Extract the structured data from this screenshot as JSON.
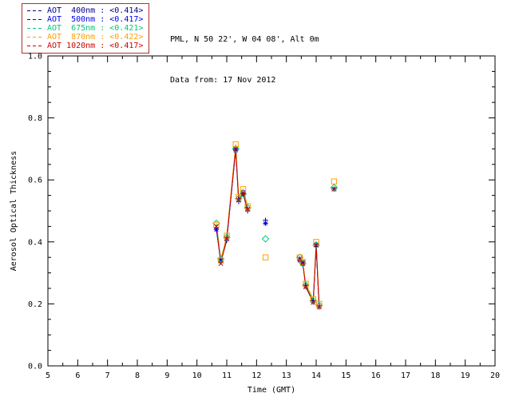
{
  "header": {
    "station_line": "PML, N 50 22', W 04 08', Alt 0m",
    "date_line": "Data from: 17 Nov 2012"
  },
  "chart_data": {
    "type": "line",
    "title": "",
    "xlabel": "Time (GMT)",
    "ylabel": "Aerosol Optical Thickness",
    "xlim": [
      5,
      20
    ],
    "ylim": [
      0.0,
      1.0
    ],
    "xticks": [
      5,
      6,
      7,
      8,
      9,
      10,
      11,
      12,
      13,
      14,
      15,
      16,
      17,
      18,
      19,
      20
    ],
    "yticks": [
      0.0,
      0.2,
      0.4,
      0.6,
      0.8,
      1.0
    ],
    "x_minor_step": 0.5,
    "y_minor_step": 0.05,
    "gap_threshold": 0.45,
    "grid": false,
    "legend_position": "top-left",
    "x": [
      10.65,
      10.8,
      11.0,
      11.3,
      11.4,
      11.55,
      11.7,
      12.3,
      13.45,
      13.55,
      13.65,
      13.9,
      14.0,
      14.1,
      14.6
    ],
    "series": [
      {
        "name": "AOT 400nm",
        "mean": "<0.414>",
        "label": "AOT  400nm : <0.414>",
        "color": "#00008B",
        "marker": "plus",
        "values": [
          0.445,
          0.335,
          0.405,
          0.7,
          0.53,
          0.555,
          0.5,
          0.47,
          0.345,
          0.33,
          0.26,
          0.21,
          0.385,
          0.19,
          0.57
        ]
      },
      {
        "name": "AOT 500nm",
        "mean": "<0.417>",
        "label": "AOT  500nm : <0.417>",
        "color": "#0000EE",
        "marker": "asterisk",
        "values": [
          0.44,
          0.34,
          0.41,
          0.695,
          0.535,
          0.56,
          0.505,
          0.46,
          0.34,
          0.335,
          0.255,
          0.205,
          0.39,
          0.19,
          0.57
        ]
      },
      {
        "name": "AOT 675nm",
        "mean": "<0.421>",
        "label": "AOT  675nm : <0.421>",
        "color": "#00C878",
        "marker": "diamond",
        "values": [
          0.46,
          0.345,
          0.415,
          0.7,
          0.54,
          0.555,
          0.51,
          0.41,
          0.35,
          0.33,
          0.26,
          0.21,
          0.39,
          0.195,
          0.575
        ]
      },
      {
        "name": "AOT 870nm",
        "mean": "<0.422>",
        "label": "AOT  870nm : <0.422>",
        "color": "#FFA000",
        "marker": "square",
        "values": [
          0.455,
          0.34,
          0.42,
          0.715,
          0.545,
          0.57,
          0.515,
          0.35,
          0.35,
          0.335,
          0.265,
          0.215,
          0.4,
          0.2,
          0.595
        ]
      },
      {
        "name": "AOT 1020nm",
        "mean": "<0.417>",
        "label": "AOT 1020nm : <0.417>",
        "color": "#CC0000",
        "marker": "x",
        "values": [
          0.45,
          0.33,
          0.41,
          0.7,
          0.535,
          0.555,
          0.505,
          null,
          0.345,
          0.33,
          0.255,
          0.205,
          0.39,
          0.19,
          0.57
        ]
      }
    ]
  }
}
